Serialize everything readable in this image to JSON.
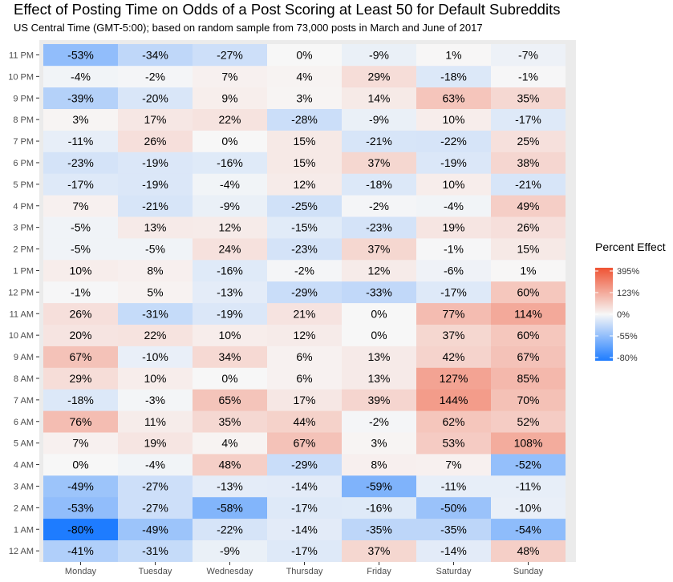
{
  "chart_data": {
    "type": "heatmap",
    "title": "Effect of Posting Time on Odds of a Post Scoring at Least 50 for Default Subreddits",
    "subtitle": "US Central Time (GMT-5:00); based on random sample from 73,000 posts in March and June of 2017",
    "x_categories": [
      "Monday",
      "Tuesday",
      "Wednesday",
      "Thursday",
      "Friday",
      "Saturday",
      "Sunday"
    ],
    "y_categories": [
      "12 AM",
      "1 AM",
      "2 AM",
      "3 AM",
      "4 AM",
      "5 AM",
      "6 AM",
      "7 AM",
      "8 AM",
      "9 AM",
      "10 AM",
      "11 AM",
      "12 PM",
      "1 PM",
      "2 PM",
      "3 PM",
      "4 PM",
      "5 PM",
      "6 PM",
      "7 PM",
      "8 PM",
      "9 PM",
      "10 PM",
      "11 PM"
    ],
    "values": [
      [
        -41,
        -31,
        -9,
        -17,
        37,
        -14,
        48
      ],
      [
        -80,
        -49,
        -22,
        -14,
        -35,
        -35,
        -54
      ],
      [
        -53,
        -27,
        -58,
        -17,
        -16,
        -50,
        -10
      ],
      [
        -49,
        -27,
        -13,
        -14,
        -59,
        -11,
        -11
      ],
      [
        0,
        -4,
        48,
        -29,
        8,
        7,
        -52
      ],
      [
        7,
        19,
        4,
        67,
        3,
        53,
        108
      ],
      [
        76,
        11,
        35,
        44,
        -2,
        62,
        52
      ],
      [
        -18,
        -3,
        65,
        17,
        39,
        144,
        70
      ],
      [
        29,
        10,
        0,
        6,
        13,
        127,
        85
      ],
      [
        67,
        -10,
        34,
        6,
        13,
        42,
        67
      ],
      [
        20,
        22,
        10,
        12,
        0,
        37,
        60
      ],
      [
        26,
        -31,
        -19,
        21,
        0,
        77,
        114
      ],
      [
        -1,
        5,
        -13,
        -29,
        -33,
        -17,
        60
      ],
      [
        10,
        8,
        -16,
        -2,
        12,
        -6,
        1
      ],
      [
        -5,
        -5,
        24,
        -23,
        37,
        -1,
        15
      ],
      [
        -5,
        13,
        12,
        -15,
        -23,
        19,
        26
      ],
      [
        7,
        -21,
        -9,
        -25,
        -2,
        -4,
        49
      ],
      [
        -17,
        -19,
        -4,
        12,
        -18,
        10,
        -21
      ],
      [
        -23,
        -19,
        -16,
        15,
        37,
        -19,
        38
      ],
      [
        -11,
        26,
        0,
        15,
        -21,
        -22,
        25
      ],
      [
        3,
        17,
        22,
        -28,
        -9,
        10,
        -17
      ],
      [
        -39,
        -20,
        9,
        3,
        14,
        63,
        35
      ],
      [
        -4,
        -2,
        7,
        4,
        29,
        -18,
        -1
      ],
      [
        -53,
        -34,
        -27,
        0,
        -9,
        1,
        -7
      ]
    ],
    "value_suffix": "%",
    "legend": {
      "title": "Percent Effect",
      "ticks": [
        "395%",
        "123%",
        "0%",
        "-55%",
        "-80%"
      ],
      "tick_values": [
        395,
        123,
        0,
        -55,
        -80
      ],
      "position": "right"
    },
    "colors": {
      "low": "#1e7cff",
      "mid": "#f7f7f7",
      "high": "#ef5333",
      "panel_background": "#ebebeb"
    },
    "grid": true
  }
}
